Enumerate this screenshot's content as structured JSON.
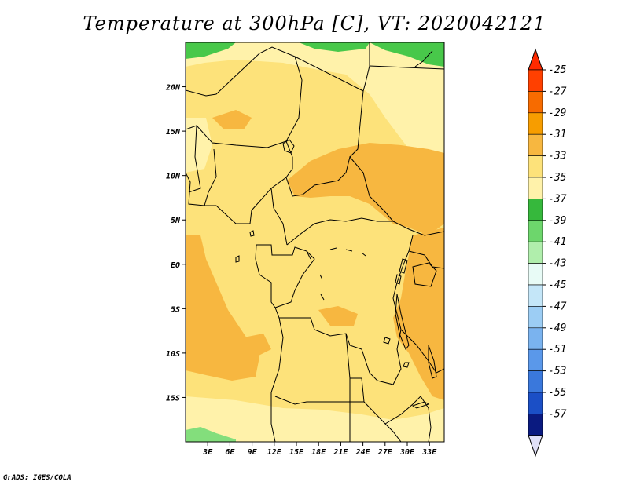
{
  "title": "Temperature at 300hPa [C], VT: 2020042121",
  "credit": "GrADS: IGES/COLA",
  "map": {
    "lat_range": [
      -20,
      25
    ],
    "lon_range": [
      0,
      35
    ],
    "lat_ticks": [
      {
        "value": 20,
        "label": "20N"
      },
      {
        "value": 15,
        "label": "15N"
      },
      {
        "value": 10,
        "label": "10N"
      },
      {
        "value": 5,
        "label": "5N"
      },
      {
        "value": 0,
        "label": "EQ"
      },
      {
        "value": -5,
        "label": "5S"
      },
      {
        "value": -10,
        "label": "10S"
      },
      {
        "value": -15,
        "label": "15S"
      }
    ],
    "lon_ticks": [
      {
        "value": 3,
        "label": "3E"
      },
      {
        "value": 6,
        "label": "6E"
      },
      {
        "value": 9,
        "label": "9E"
      },
      {
        "value": 12,
        "label": "12E"
      },
      {
        "value": 15,
        "label": "15E"
      },
      {
        "value": 18,
        "label": "18E"
      },
      {
        "value": 21,
        "label": "21E"
      },
      {
        "value": 24,
        "label": "24E"
      },
      {
        "value": 27,
        "label": "27E"
      },
      {
        "value": 30,
        "label": "30E"
      },
      {
        "value": 33,
        "label": "33E"
      }
    ],
    "colors": {
      "c33_31": "#fde27a",
      "c35_33": "#fff2aa",
      "c31_29": "#f7b740",
      "c37_35": "#48c84a",
      "c39_37": "#83de7c"
    }
  },
  "colorbar": {
    "labels": [
      "-25",
      "-27",
      "-29",
      "-31",
      "-33",
      "-35",
      "-37",
      "-39",
      "-41",
      "-43",
      "-45",
      "-47",
      "-49",
      "-51",
      "-53",
      "-55",
      "-57"
    ],
    "colors": [
      "#ff4000",
      "#f76b00",
      "#f79d00",
      "#f7b740",
      "#fde27a",
      "#fff2aa",
      "#36b83c",
      "#6dd66c",
      "#b0eeac",
      "#e8fbf6",
      "#c4e6f8",
      "#9ccdf4",
      "#7ab3ef",
      "#5a98ea",
      "#3a78dc",
      "#1b4fc6",
      "#0a1a80"
    ],
    "top_color": "#ff2a00",
    "bottom_color": "#e0e0f8"
  }
}
